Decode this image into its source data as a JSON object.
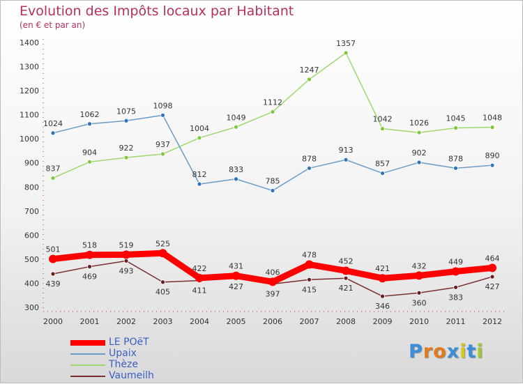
{
  "title": "Evolution des Impôts locaux par Habitant",
  "subtitle": "(en € et par an)",
  "logo": {
    "letters": [
      "P",
      "r",
      "o",
      "x",
      "i",
      "t",
      "i"
    ],
    "colors": [
      "#3a8ed8",
      "#e07a1c",
      "#e07a1c",
      "#3a8ed8",
      "#d0c81a",
      "#3a8ed8",
      "#a0c830"
    ]
  },
  "chart_data": {
    "type": "line",
    "x": [
      "2000",
      "2001",
      "2002",
      "2003",
      "2004",
      "2005",
      "2006",
      "2007",
      "2008",
      "2009",
      "2010",
      "2011",
      "2012"
    ],
    "yticks": [
      300,
      400,
      500,
      600,
      700,
      800,
      900,
      1000,
      1100,
      1200,
      1300,
      1400
    ],
    "ylim": [
      300,
      1400
    ],
    "grid": false,
    "legend_position": "bottom-left",
    "series": [
      {
        "name": "LE POëT",
        "color": "#ff0000",
        "values": [
          501,
          518,
          519,
          525,
          422,
          431,
          406,
          478,
          452,
          421,
          432,
          449,
          464
        ]
      },
      {
        "name": "Upaix",
        "color": "#6a9cc8",
        "marker": "#2f73b8",
        "values": [
          1024,
          1062,
          1075,
          1098,
          812,
          833,
          785,
          878,
          913,
          857,
          902,
          878,
          890
        ]
      },
      {
        "name": "Thèze",
        "color": "#9ed86e",
        "marker": "#7ec83e",
        "values": [
          837,
          904,
          922,
          937,
          1004,
          1049,
          1112,
          1247,
          1357,
          1042,
          1026,
          1045,
          1048
        ]
      },
      {
        "name": "Vaumeilh",
        "color": "#7a2e2e",
        "marker": "#6a1e1e",
        "values": [
          439,
          469,
          493,
          405,
          411,
          427,
          397,
          415,
          421,
          346,
          360,
          383,
          427
        ]
      }
    ]
  }
}
